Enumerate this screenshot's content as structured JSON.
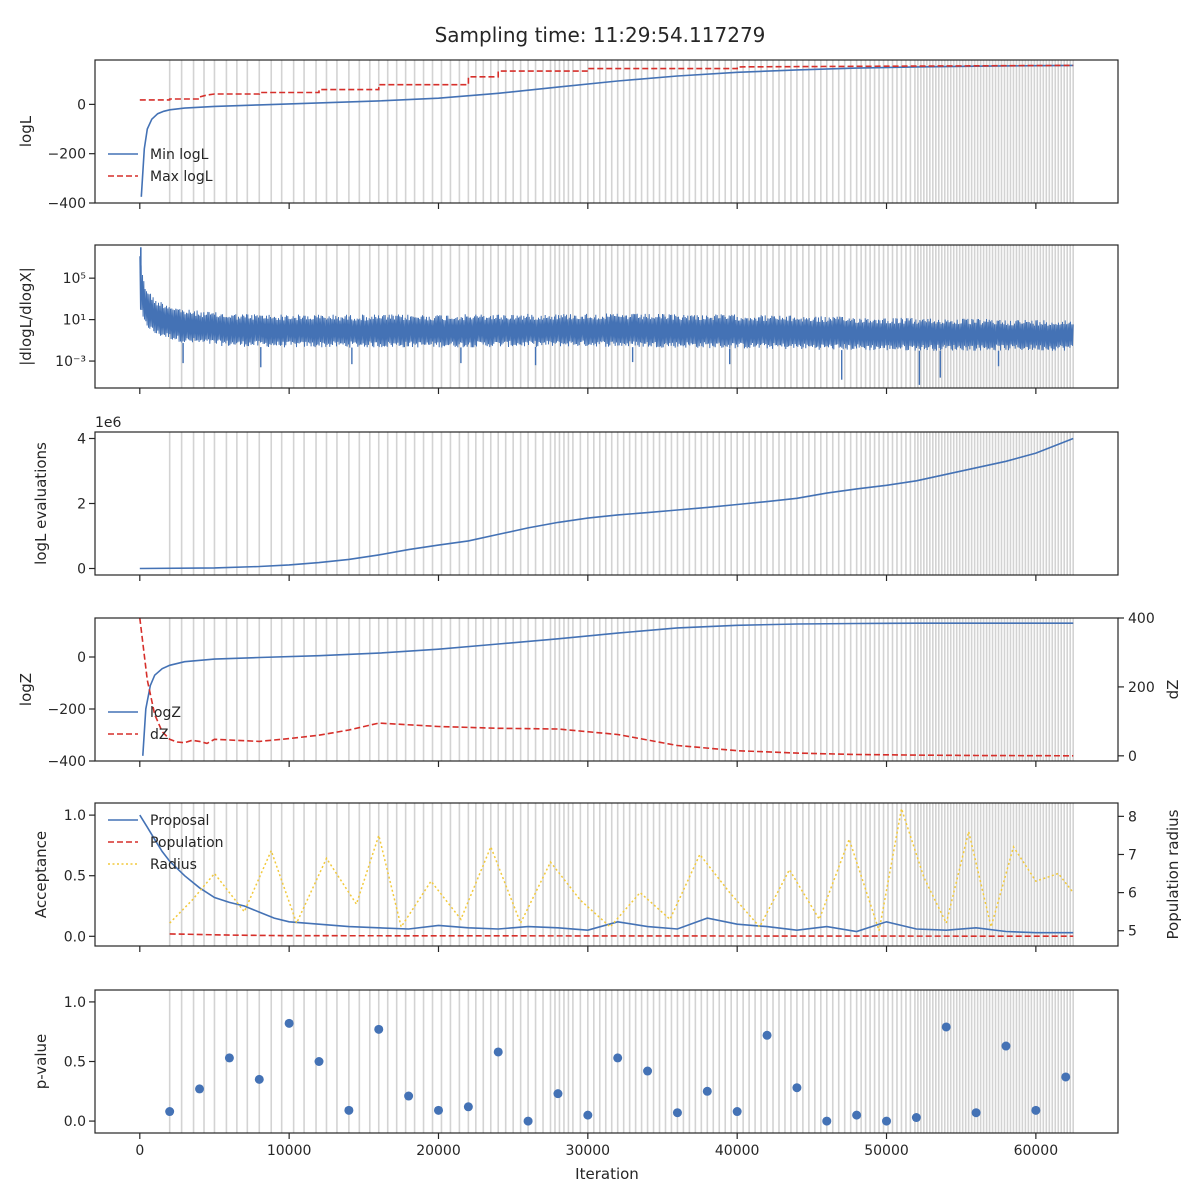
{
  "figure": {
    "title": "Sampling time: 11:29:54.117279",
    "xlabel": "Iteration",
    "x_ticks": [
      0,
      10000,
      20000,
      30000,
      40000,
      50000,
      60000
    ],
    "x_tick_labels": [
      "0",
      "10000",
      "20000",
      "30000",
      "40000",
      "50000",
      "60000"
    ],
    "xlim": [
      -3000,
      65500
    ]
  },
  "colors": {
    "blue": "#4472b5",
    "red": "#d62f2a",
    "yellow": "#f2c93b",
    "gray": "#d3d3d3",
    "dot": "#4472b5"
  },
  "chart_data": [
    {
      "type": "line",
      "panel": "logL",
      "ylabel": "logL",
      "ylim": [
        -400,
        180
      ],
      "y_ticks": [
        -400,
        -200,
        0
      ],
      "y_tick_labels": [
        "−400",
        "−200",
        "0"
      ],
      "legend": [
        "Min logL",
        "Max logL"
      ],
      "series": [
        {
          "name": "Min logL",
          "style": "solid",
          "color": "blue",
          "x": [
            100,
            300,
            500,
            800,
            1200,
            1600,
            2000,
            3000,
            5000,
            8000,
            12000,
            16000,
            20000,
            24000,
            28000,
            32000,
            36000,
            40000,
            44000,
            48000,
            52000,
            56000,
            60000,
            62500
          ],
          "y": [
            -375,
            -180,
            -100,
            -60,
            -38,
            -28,
            -22,
            -15,
            -8,
            -2,
            6,
            14,
            25,
            45,
            70,
            95,
            115,
            130,
            140,
            147,
            152,
            155,
            157,
            158
          ]
        },
        {
          "name": "Max logL",
          "style": "dashed",
          "color": "red",
          "x": [
            0,
            2000,
            2001,
            4000,
            4001,
            4500,
            5000,
            8000,
            8001,
            12000,
            12001,
            16000,
            16001,
            22000,
            22001,
            24000,
            24001,
            30000,
            30001,
            40000,
            40001,
            50000,
            62500
          ],
          "y": [
            18,
            18,
            22,
            22,
            30,
            38,
            42,
            42,
            48,
            48,
            60,
            60,
            80,
            80,
            112,
            112,
            135,
            135,
            145,
            145,
            152,
            155,
            158
          ]
        }
      ]
    },
    {
      "type": "line",
      "panel": "dlogL",
      "ylabel": "|dlogL/dlogX|",
      "yscale": "log",
      "ylim_log10": [
        -5.6,
        8.2
      ],
      "y_ticks_log10": [
        -3,
        1,
        5
      ],
      "y_tick_labels": [
        "10⁻³",
        "10¹",
        "10⁵"
      ],
      "series": [
        {
          "name": "|dlogL/dlogX|",
          "color": "blue",
          "style": "noisy-band",
          "x": [
            0,
            300,
            1000,
            3000,
            6000,
            10000,
            20000,
            30000,
            40000,
            50000,
            60000,
            62500
          ],
          "upper_log10": [
            7.5,
            4.5,
            3.0,
            2.0,
            1.6,
            1.5,
            1.5,
            1.6,
            1.5,
            1.2,
            1.0,
            1.0
          ],
          "lower_log10": [
            2.0,
            0.5,
            -0.5,
            -1.3,
            -1.6,
            -1.7,
            -1.7,
            -1.6,
            -1.8,
            -2.0,
            -2.0,
            -2.0
          ],
          "deep_spikes_x": [
            2900,
            8100,
            14200,
            21500,
            26500,
            33000,
            39500,
            47000,
            52200,
            53600,
            57500
          ],
          "deep_spikes_log10": [
            -3.2,
            -3.6,
            -3.3,
            -3.2,
            -3.4,
            -3.1,
            -3.3,
            -4.8,
            -5.3,
            -4.6,
            -3.5
          ]
        }
      ]
    },
    {
      "type": "line",
      "panel": "evaluations",
      "ylabel": "logL evaluations",
      "offset_label": "1e6",
      "ylim": [
        -0.2,
        4.2
      ],
      "y_ticks": [
        0,
        2,
        4
      ],
      "y_tick_labels": [
        "0",
        "2",
        "4"
      ],
      "series": [
        {
          "name": "logL evaluations (×1e6)",
          "color": "blue",
          "style": "solid",
          "x": [
            0,
            5000,
            8000,
            10000,
            12000,
            14000,
            16000,
            18000,
            20000,
            22000,
            24000,
            26000,
            28000,
            30000,
            32000,
            34000,
            36000,
            38000,
            40000,
            42000,
            44000,
            46000,
            48000,
            50000,
            52000,
            54000,
            56000,
            58000,
            60000,
            62500
          ],
          "y": [
            0.0,
            0.02,
            0.06,
            0.11,
            0.18,
            0.28,
            0.42,
            0.58,
            0.72,
            0.85,
            1.05,
            1.25,
            1.42,
            1.55,
            1.65,
            1.72,
            1.8,
            1.88,
            1.97,
            2.06,
            2.16,
            2.32,
            2.45,
            2.56,
            2.7,
            2.9,
            3.1,
            3.3,
            3.55,
            4.0
          ]
        }
      ]
    },
    {
      "type": "line",
      "panel": "logZ",
      "ylabel": "logZ",
      "ylabel_right": "dZ",
      "ylim": [
        -400,
        150
      ],
      "y_ticks": [
        -400,
        -200,
        0
      ],
      "y_tick_labels": [
        "−400",
        "−200",
        "0"
      ],
      "ylim_right": [
        -15,
        400
      ],
      "y_ticks_right": [
        0,
        200,
        400
      ],
      "y_tick_labels_right": [
        "0",
        "200",
        "400"
      ],
      "legend": [
        "logZ",
        "dZ"
      ],
      "series": [
        {
          "name": "logZ",
          "axis": "left",
          "color": "blue",
          "style": "solid",
          "x": [
            200,
            400,
            700,
            1000,
            1500,
            2000,
            3000,
            5000,
            8000,
            12000,
            16000,
            20000,
            24000,
            28000,
            32000,
            36000,
            40000,
            44000,
            48000,
            52000,
            56000,
            62500
          ],
          "y": [
            -380,
            -200,
            -110,
            -70,
            -45,
            -32,
            -18,
            -8,
            -2,
            5,
            15,
            30,
            50,
            70,
            92,
            112,
            122,
            127,
            129,
            130,
            130,
            130
          ]
        },
        {
          "name": "dZ",
          "axis": "right",
          "color": "red",
          "style": "dashed",
          "x": [
            0,
            500,
            1000,
            1500,
            2000,
            2500,
            3000,
            3500,
            4000,
            4500,
            5000,
            6000,
            8000,
            10000,
            12000,
            14000,
            16000,
            20000,
            24000,
            28000,
            32000,
            36000,
            40000,
            44000,
            48000,
            52000,
            56000,
            62500
          ],
          "y": [
            400,
            220,
            120,
            70,
            48,
            40,
            38,
            45,
            42,
            36,
            48,
            46,
            42,
            50,
            60,
            75,
            95,
            85,
            80,
            78,
            62,
            30,
            15,
            8,
            4,
            2,
            1,
            0
          ]
        }
      ]
    },
    {
      "type": "line",
      "panel": "acceptance",
      "ylabel": "Acceptance",
      "ylabel_right": "Population radius",
      "ylim": [
        -0.08,
        1.1
      ],
      "y_ticks": [
        0.0,
        0.5,
        1.0
      ],
      "y_tick_labels": [
        "0.0",
        "0.5",
        "1.0"
      ],
      "ylim_right": [
        4.6,
        8.35
      ],
      "y_ticks_right": [
        5,
        6,
        7,
        8
      ],
      "y_tick_labels_right": [
        "5",
        "6",
        "7",
        "8"
      ],
      "legend": [
        "Proposal",
        "Population",
        "Radius"
      ],
      "series": [
        {
          "name": "Proposal",
          "axis": "left",
          "color": "blue",
          "style": "solid",
          "x": [
            0,
            500,
            1000,
            1500,
            2000,
            3000,
            4000,
            5000,
            6000,
            7000,
            8000,
            9000,
            10000,
            12000,
            14000,
            16000,
            18000,
            20000,
            22000,
            24000,
            26000,
            28000,
            30000,
            32000,
            34000,
            36000,
            38000,
            40000,
            42000,
            44000,
            46000,
            48000,
            50000,
            52000,
            54000,
            56000,
            58000,
            60000,
            62500
          ],
          "y": [
            1.0,
            0.9,
            0.8,
            0.7,
            0.62,
            0.5,
            0.4,
            0.32,
            0.28,
            0.25,
            0.2,
            0.15,
            0.12,
            0.1,
            0.08,
            0.07,
            0.06,
            0.09,
            0.07,
            0.06,
            0.08,
            0.07,
            0.05,
            0.12,
            0.08,
            0.06,
            0.15,
            0.1,
            0.08,
            0.05,
            0.08,
            0.04,
            0.12,
            0.06,
            0.05,
            0.07,
            0.04,
            0.03,
            0.03
          ]
        },
        {
          "name": "Population",
          "axis": "left",
          "color": "red",
          "style": "dashed",
          "x": [
            2000,
            6000,
            10000,
            30000,
            50000,
            62500
          ],
          "y": [
            0.02,
            0.01,
            0.005,
            0.003,
            0.002,
            0.001
          ]
        },
        {
          "name": "Radius",
          "axis": "right",
          "color": "yellow",
          "style": "dotted",
          "x": [
            2000,
            3500,
            5000,
            7000,
            8800,
            10500,
            12500,
            14500,
            16000,
            17500,
            19500,
            21500,
            23500,
            25500,
            27500,
            29500,
            31500,
            33500,
            35500,
            37500,
            39500,
            41500,
            43500,
            45500,
            47500,
            49500,
            51000,
            52500,
            54000,
            55500,
            57000,
            58500,
            60000,
            61500,
            62500
          ],
          "y": [
            5.2,
            5.8,
            6.5,
            5.5,
            7.1,
            5.2,
            6.9,
            5.7,
            7.5,
            5.1,
            6.3,
            5.3,
            7.2,
            5.2,
            6.8,
            5.8,
            5.1,
            6.0,
            5.3,
            7.0,
            6.0,
            5.1,
            6.6,
            5.3,
            7.4,
            5.0,
            8.2,
            6.4,
            5.2,
            7.6,
            5.1,
            7.2,
            6.3,
            6.5,
            6.0
          ]
        }
      ]
    },
    {
      "type": "scatter",
      "panel": "pvalue",
      "ylabel": "p-value",
      "ylim": [
        -0.1,
        1.1
      ],
      "y_ticks": [
        0.0,
        0.5,
        1.0
      ],
      "y_tick_labels": [
        "0.0",
        "0.5",
        "1.0"
      ],
      "series": [
        {
          "name": "p-value",
          "color": "dot",
          "x": [
            2000,
            4000,
            6000,
            8000,
            10000,
            12000,
            14000,
            16000,
            18000,
            20000,
            22000,
            24000,
            26000,
            28000,
            30000,
            32000,
            34000,
            36000,
            38000,
            40000,
            42000,
            44000,
            46000,
            48000,
            50000,
            52000,
            54000,
            56000,
            58000,
            60000,
            62000
          ],
          "y": [
            0.08,
            0.27,
            0.53,
            0.35,
            0.82,
            0.5,
            0.09,
            0.77,
            0.21,
            0.09,
            0.12,
            0.58,
            0.0,
            0.23,
            0.05,
            0.53,
            0.42,
            0.07,
            0.25,
            0.08,
            0.72,
            0.28,
            0.0,
            0.05,
            0.0,
            0.03,
            0.79,
            0.07,
            0.63,
            0.09,
            0.37
          ]
        }
      ]
    },
    {
      "type": "event-lines",
      "panel": "all",
      "name": "Vertical gray markers (population resets)",
      "x": [
        2000,
        2800,
        3600,
        4300,
        5000,
        5800,
        6500,
        7200,
        8000,
        8800,
        9500,
        10300,
        11000,
        11800,
        12500,
        13200,
        14000,
        14700,
        15400,
        16000,
        16600,
        17200,
        17800,
        18400,
        19000,
        19600,
        20200,
        20800,
        21400,
        22000,
        22500,
        23000,
        23500,
        24000,
        24500,
        25000,
        25500,
        26000,
        26500,
        27000,
        27500,
        27800,
        28100,
        28400,
        28700,
        29000,
        29500,
        30000,
        30400,
        30800,
        31200,
        31600,
        32000,
        32400,
        32800,
        33200,
        33600,
        34000,
        34400,
        34800,
        35200,
        35600,
        36000,
        36400,
        36800,
        37200,
        37600,
        38000,
        38400,
        38800,
        39200,
        39600,
        40000,
        40400,
        40800,
        41200,
        41600,
        42000,
        42400,
        42800,
        43200,
        43600,
        44000,
        44400,
        44800,
        45200,
        45600,
        46000,
        46400,
        46800,
        47200,
        47600,
        48000,
        48300,
        48600,
        48900,
        49200,
        49500,
        49800,
        50100,
        50400,
        50700,
        51000,
        51300,
        51600,
        51900,
        52100,
        52300,
        52500,
        52700,
        52900,
        53100,
        53300,
        53500,
        53700,
        53900,
        54100,
        54300,
        54500,
        54700,
        54900,
        55100,
        55300,
        55500,
        55700,
        55900,
        56100,
        56300,
        56500,
        56700,
        56900,
        57100,
        57300,
        57500,
        57700,
        57900,
        58100,
        58300,
        58500,
        58700,
        58900,
        59100,
        59300,
        59500,
        59700,
        59900,
        60100,
        60300,
        60500,
        60700,
        60900,
        61100,
        61300,
        61500,
        61700,
        61900,
        62100,
        62300,
        62500
      ]
    }
  ]
}
